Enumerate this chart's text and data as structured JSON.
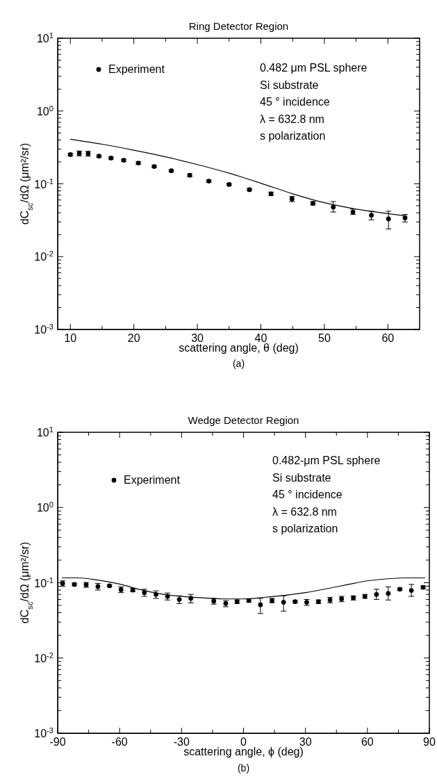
{
  "chart_data": [
    {
      "type": "scatter",
      "title": "Ring Detector Region",
      "xlabel": "scattering angle, θ (deg)",
      "ylabel": "dC$_{sc}$/dΩ (μm²/sr)",
      "log": "y",
      "legend": "top left",
      "xlim": [
        8,
        65
      ],
      "xticks": [
        10,
        20,
        30,
        40,
        50,
        60,
        {
          "value": 15,
          "label": null
        },
        {
          "value": 25,
          "label": null
        },
        {
          "value": 35,
          "label": null
        },
        {
          "value": 45,
          "label": null
        },
        {
          "value": 55,
          "label": null
        }
      ],
      "ylim": [
        0.001,
        10
      ],
      "yticks": [
        {
          "value": 0.001,
          "label": "10$^{-3}$"
        },
        {
          "value": 0.01,
          "label": "10$^{-2}$"
        },
        {
          "value": 0.1,
          "label": "10$^{-1}$"
        },
        {
          "value": 1,
          "label": "10$^{0}$"
        },
        {
          "value": 10,
          "label": "10$^{1}$"
        },
        {
          "value": 0.002,
          "label": null
        },
        {
          "value": 0.003,
          "label": null
        },
        {
          "value": 0.004,
          "label": null
        },
        {
          "value": 0.005,
          "label": null
        },
        {
          "value": 0.006,
          "label": null
        },
        {
          "value": 0.007,
          "label": null
        },
        {
          "value": 0.008,
          "label": null
        },
        {
          "value": 0.009,
          "label": null
        },
        {
          "value": 0.02,
          "label": null
        },
        {
          "value": 0.03,
          "label": null
        },
        {
          "value": 0.04,
          "label": null
        },
        {
          "value": 0.05,
          "label": null
        },
        {
          "value": 0.06,
          "label": null
        },
        {
          "value": 0.07,
          "label": null
        },
        {
          "value": 0.08,
          "label": null
        },
        {
          "value": 0.09,
          "label": null
        },
        {
          "value": 0.2,
          "label": null
        },
        {
          "value": 0.3,
          "label": null
        },
        {
          "value": 0.4,
          "label": null
        },
        {
          "value": 0.5,
          "label": null
        },
        {
          "value": 0.6,
          "label": null
        },
        {
          "value": 0.7,
          "label": null
        },
        {
          "value": 0.8,
          "label": null
        },
        {
          "value": 0.9,
          "label": null
        },
        {
          "value": 2,
          "label": null
        },
        {
          "value": 3,
          "label": null
        },
        {
          "value": 4,
          "label": null
        },
        {
          "value": 5,
          "label": null
        },
        {
          "value": 6,
          "label": null
        },
        {
          "value": 7,
          "label": null
        },
        {
          "value": 8,
          "label": null
        },
        {
          "value": 9,
          "label": null
        }
      ],
      "series": [
        {
          "name": "Experiment",
          "type": "scatter",
          "marker": "circle",
          "color": "#000000",
          "x": [
            10.0,
            11.4,
            12.8,
            14.5,
            16.4,
            18.4,
            20.7,
            23.2,
            25.9,
            28.8,
            31.8,
            35.0,
            38.2,
            41.6,
            44.9,
            48.2,
            51.4,
            54.5,
            57.4,
            60.1,
            62.7
          ],
          "values": [
            0.252,
            0.262,
            0.26,
            0.24,
            0.226,
            0.211,
            0.193,
            0.173,
            0.151,
            0.131,
            0.109,
            0.098,
            0.083,
            0.073,
            0.062,
            0.054,
            0.048,
            0.041,
            0.037,
            0.033,
            0.034
          ],
          "errors": [
            0.01,
            0.02,
            0.02,
            0.008,
            0.008,
            0.008,
            0.008,
            0.006,
            0.005,
            0.006,
            0.004,
            0.003,
            0.003,
            0.004,
            0.005,
            0.003,
            [
              0.041,
              0.057
            ],
            [
              0.038,
              0.045
            ],
            [
              0.032,
              0.042
            ],
            [
              0.024,
              0.042
            ],
            [
              0.03,
              0.038
            ]
          ]
        },
        {
          "type": "line",
          "marker": "none",
          "color": "#000000",
          "x": [
            10,
            15,
            20,
            25,
            30,
            35,
            40,
            45,
            50,
            55,
            60,
            63
          ],
          "values": [
            0.41,
            0.35,
            0.29,
            0.235,
            0.184,
            0.14,
            0.102,
            0.073,
            0.055,
            0.045,
            0.039,
            0.036
          ]
        }
      ],
      "annotations": [
        "0.482  μm PSL sphere",
        "Si substrate",
        "45 ° incidence",
        "λ = 632.8 nm",
        "s polarization",
        "(a)"
      ]
    },
    {
      "type": "scatter",
      "title": "Wedge Detector Region",
      "xlabel": "scattering angle, ϕ (deg)",
      "ylabel": "dC$_{sc}$/dΩ (μm²/sr)",
      "log": "y",
      "legend": "top left",
      "xlim": [
        -90,
        90
      ],
      "xticks": [
        -90,
        -60,
        -30,
        0,
        30,
        60,
        90,
        {
          "value": -75,
          "label": null
        },
        {
          "value": -45,
          "label": null
        },
        {
          "value": -15,
          "label": null
        },
        {
          "value": 15,
          "label": null
        },
        {
          "value": 45,
          "label": null
        },
        {
          "value": 75,
          "label": null
        }
      ],
      "ylim": [
        0.001,
        10
      ],
      "yticks": [
        {
          "value": 0.001,
          "label": "10$^{-3}$"
        },
        {
          "value": 0.01,
          "label": "10$^{-2}$"
        },
        {
          "value": 0.1,
          "label": "10$^{-1}$"
        },
        {
          "value": 1,
          "label": "10$^{0}$"
        },
        {
          "value": 10,
          "label": "10$^{1}$"
        },
        {
          "value": 0.002,
          "label": null
        },
        {
          "value": 0.003,
          "label": null
        },
        {
          "value": 0.004,
          "label": null
        },
        {
          "value": 0.005,
          "label": null
        },
        {
          "value": 0.006,
          "label": null
        },
        {
          "value": 0.007,
          "label": null
        },
        {
          "value": 0.008,
          "label": null
        },
        {
          "value": 0.009,
          "label": null
        },
        {
          "value": 0.02,
          "label": null
        },
        {
          "value": 0.03,
          "label": null
        },
        {
          "value": 0.04,
          "label": null
        },
        {
          "value": 0.05,
          "label": null
        },
        {
          "value": 0.06,
          "label": null
        },
        {
          "value": 0.07,
          "label": null
        },
        {
          "value": 0.08,
          "label": null
        },
        {
          "value": 0.09,
          "label": null
        },
        {
          "value": 0.2,
          "label": null
        },
        {
          "value": 0.3,
          "label": null
        },
        {
          "value": 0.4,
          "label": null
        },
        {
          "value": 0.5,
          "label": null
        },
        {
          "value": 0.6,
          "label": null
        },
        {
          "value": 0.7,
          "label": null
        },
        {
          "value": 0.8,
          "label": null
        },
        {
          "value": 0.9,
          "label": null
        },
        {
          "value": 2,
          "label": null
        },
        {
          "value": 3,
          "label": null
        },
        {
          "value": 4,
          "label": null
        },
        {
          "value": 5,
          "label": null
        },
        {
          "value": 6,
          "label": null
        },
        {
          "value": 7,
          "label": null
        },
        {
          "value": 8,
          "label": null
        },
        {
          "value": 9,
          "label": null
        }
      ],
      "series": [
        {
          "name": "Experiment",
          "type": "scatter",
          "marker": "circle",
          "color": "#000000",
          "x": [
            -87.6,
            -81.9,
            -76.2,
            -70.5,
            -64.9,
            -59.3,
            -53.6,
            -48.0,
            -42.4,
            -36.8,
            -31.1,
            -25.5,
            -14.4,
            -8.6,
            -3.1,
            2.6,
            8.2,
            13.8,
            19.4,
            25.0,
            30.6,
            36.3,
            41.9,
            47.5,
            53.2,
            58.8,
            64.4,
            70.1,
            75.7,
            81.3,
            87.0
          ],
          "values": [
            0.098,
            0.095,
            0.094,
            0.089,
            0.091,
            0.081,
            0.08,
            0.074,
            0.07,
            0.066,
            0.06,
            0.062,
            0.057,
            0.053,
            0.056,
            0.058,
            0.051,
            0.058,
            0.055,
            0.056,
            0.055,
            0.056,
            0.059,
            0.061,
            0.063,
            0.066,
            0.07,
            0.072,
            0.082,
            0.079,
            0.087
          ],
          "errors": [
            0.008,
            0.004,
            0.007,
            0.009,
            0.003,
            0.007,
            0.004,
            0.008,
            0.008,
            0.007,
            0.007,
            0.008,
            0.005,
            0.005,
            0.003,
            0.003,
            [
              0.039,
              0.062
            ],
            0.004,
            [
              0.042,
              0.067
            ],
            0.002,
            0.005,
            0.003,
            0.005,
            0.005,
            0.004,
            0.004,
            [
              0.06,
              0.082
            ],
            [
              0.059,
              0.088
            ],
            0.003,
            [
              0.066,
              0.095
            ],
            0.004
          ]
        },
        {
          "type": "line",
          "marker": "none",
          "color": "#000000",
          "x": [
            -88,
            -80,
            -70,
            -60,
            -50,
            -40,
            -30,
            -20,
            -10,
            0,
            10,
            20,
            30,
            40,
            50,
            60,
            70,
            80,
            88
          ],
          "values": [
            0.116,
            0.116,
            0.108,
            0.096,
            0.081,
            0.071,
            0.066,
            0.063,
            0.061,
            0.061,
            0.064,
            0.068,
            0.074,
            0.083,
            0.094,
            0.106,
            0.113,
            0.116,
            0.116
          ]
        }
      ],
      "annotations": [
        "0.482-μm PSL sphere",
        "Si substrate",
        "45 ° incidence",
        "λ = 632.8 nm",
        "s polarization",
        "(b)"
      ]
    }
  ]
}
